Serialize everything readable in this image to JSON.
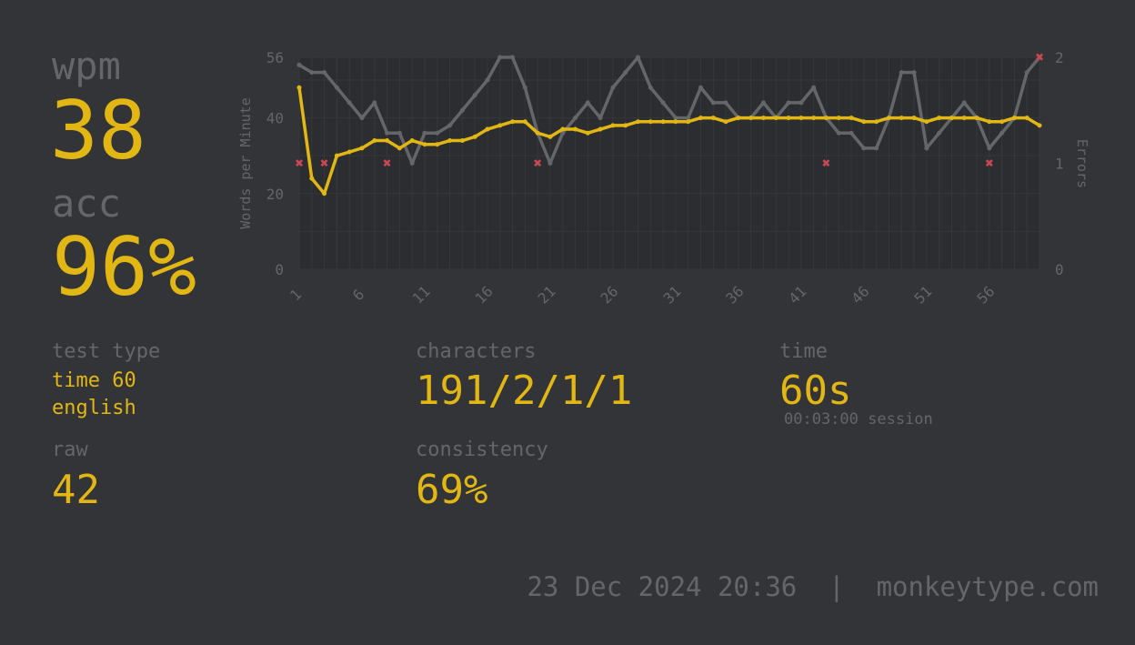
{
  "stats": {
    "wpm_label": "wpm",
    "wpm_value": "38",
    "acc_label": "acc",
    "acc_value": "96%",
    "test_type_label": "test type",
    "test_type_line1": "time 60",
    "test_type_line2": "english",
    "raw_label": "raw",
    "raw_value": "42",
    "characters_label": "characters",
    "characters_value": "191/2/1/1",
    "consistency_label": "consistency",
    "consistency_value": "69%",
    "time_label": "time",
    "time_value": "60s",
    "session_label": "00:03:00 session"
  },
  "footer": {
    "date": "23 Dec 2024 20:36",
    "separator": "|",
    "site": "monkeytype.com"
  },
  "colors": {
    "background": "#323437",
    "main": "#e2b714",
    "sub": "#646669",
    "error": "#ca4754"
  },
  "chart_data": {
    "type": "line",
    "ylabel": "Words per Minute",
    "y2label": "Errors",
    "ylim": [
      0,
      56
    ],
    "y2lim": [
      0,
      2
    ],
    "yticks": [
      0,
      20,
      40,
      56
    ],
    "y2ticks": [
      0,
      1,
      2
    ],
    "xticks": [
      1,
      6,
      11,
      16,
      21,
      26,
      31,
      36,
      41,
      46,
      51,
      56
    ],
    "x": [
      1,
      2,
      3,
      4,
      5,
      6,
      7,
      8,
      9,
      10,
      11,
      12,
      13,
      14,
      15,
      16,
      17,
      18,
      19,
      20,
      21,
      22,
      23,
      24,
      25,
      26,
      27,
      28,
      29,
      30,
      31,
      32,
      33,
      34,
      35,
      36,
      37,
      38,
      39,
      40,
      41,
      42,
      43,
      44,
      45,
      46,
      47,
      48,
      49,
      50,
      51,
      52,
      53,
      54,
      55,
      56,
      57,
      58,
      59,
      60
    ],
    "series": [
      {
        "type": "line",
        "color": "#646669",
        "values": [
          54,
          52,
          52,
          48,
          44,
          40,
          44,
          36,
          36,
          28,
          36,
          36,
          38,
          42,
          46,
          50,
          56,
          56,
          48,
          36,
          28,
          36,
          40,
          44,
          40,
          48,
          52,
          56,
          48,
          44,
          40,
          40,
          48,
          44,
          44,
          40,
          40,
          44,
          40,
          44,
          44,
          48,
          40,
          36,
          36,
          32,
          32,
          40,
          52,
          52,
          32,
          36,
          40,
          44,
          40,
          32,
          36,
          40,
          52,
          56
        ]
      },
      {
        "type": "line",
        "color": "#e2b714",
        "values": [
          48,
          24,
          20,
          30,
          31,
          32,
          34,
          34,
          32,
          34,
          33,
          33,
          34,
          34,
          35,
          37,
          38,
          39,
          39,
          36,
          35,
          37,
          37,
          36,
          37,
          38,
          38,
          39,
          39,
          39,
          39,
          39,
          40,
          40,
          39,
          40,
          40,
          40,
          40,
          40,
          40,
          40,
          40,
          40,
          40,
          39,
          39,
          40,
          40,
          40,
          39,
          40,
          40,
          40,
          40,
          39,
          39,
          40,
          40,
          38
        ]
      }
    ],
    "errors": [
      {
        "x": 1,
        "count": 1
      },
      {
        "x": 3,
        "count": 1
      },
      {
        "x": 8,
        "count": 1
      },
      {
        "x": 20,
        "count": 1
      },
      {
        "x": 43,
        "count": 1
      },
      {
        "x": 56,
        "count": 1
      },
      {
        "x": 60,
        "count": 2
      }
    ]
  }
}
